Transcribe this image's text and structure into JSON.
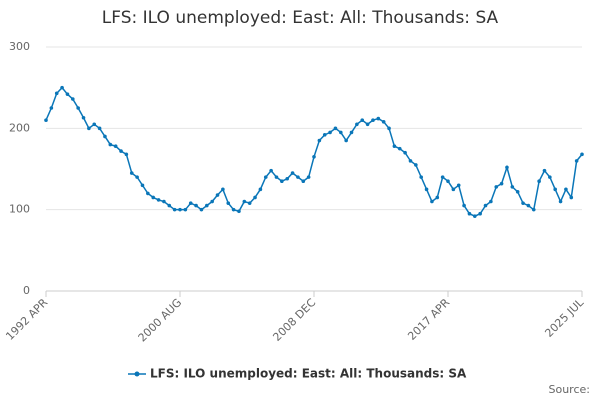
{
  "chart_data": {
    "type": "line",
    "title": "LFS: ILO unemployed: East: All: Thousands: SA",
    "source": "Source:",
    "categories": [
      "1992 APR",
      null,
      null,
      null,
      null,
      null,
      null,
      null,
      null,
      null,
      null,
      null,
      null,
      null,
      null,
      null,
      null,
      null,
      null,
      null,
      null,
      null,
      null,
      null,
      null,
      "2000 AUG",
      null,
      null,
      null,
      null,
      null,
      null,
      null,
      null,
      null,
      null,
      null,
      null,
      null,
      null,
      null,
      null,
      null,
      null,
      null,
      null,
      null,
      null,
      null,
      null,
      "2008 DEC",
      null,
      null,
      null,
      null,
      null,
      null,
      null,
      null,
      null,
      null,
      null,
      null,
      null,
      null,
      null,
      null,
      null,
      null,
      null,
      null,
      null,
      null,
      null,
      null,
      "2017 APR",
      null,
      null,
      null,
      null,
      null,
      null,
      null,
      null,
      null,
      null,
      null,
      null,
      null,
      null,
      null,
      null,
      null,
      null,
      null,
      null,
      null,
      null,
      null,
      null,
      "2025 JUL"
    ],
    "series": [
      {
        "name": "LFS: ILO unemployed: East: All: Thousands: SA",
        "color": "#0a76b8",
        "values": [
          210,
          225,
          243,
          250,
          242,
          236,
          225,
          213,
          200,
          205,
          200,
          190,
          180,
          178,
          172,
          168,
          145,
          140,
          130,
          120,
          115,
          112,
          110,
          105,
          100,
          100,
          100,
          108,
          105,
          100,
          105,
          110,
          118,
          125,
          108,
          100,
          98,
          110,
          108,
          115,
          125,
          140,
          148,
          140,
          135,
          138,
          145,
          140,
          135,
          140,
          165,
          185,
          192,
          195,
          200,
          195,
          185,
          195,
          205,
          210,
          205,
          210,
          212,
          208,
          200,
          178,
          175,
          170,
          160,
          155,
          140,
          125,
          110,
          115,
          140,
          135,
          125,
          130,
          105,
          95,
          92,
          95,
          105,
          110,
          128,
          132,
          152,
          128,
          122,
          108,
          105,
          100,
          135,
          148,
          140,
          125,
          110,
          125,
          115,
          160,
          168
        ]
      }
    ],
    "ylim": [
      0,
      300
    ],
    "yticks": [
      0,
      100,
      200,
      300
    ],
    "grid": true
  }
}
